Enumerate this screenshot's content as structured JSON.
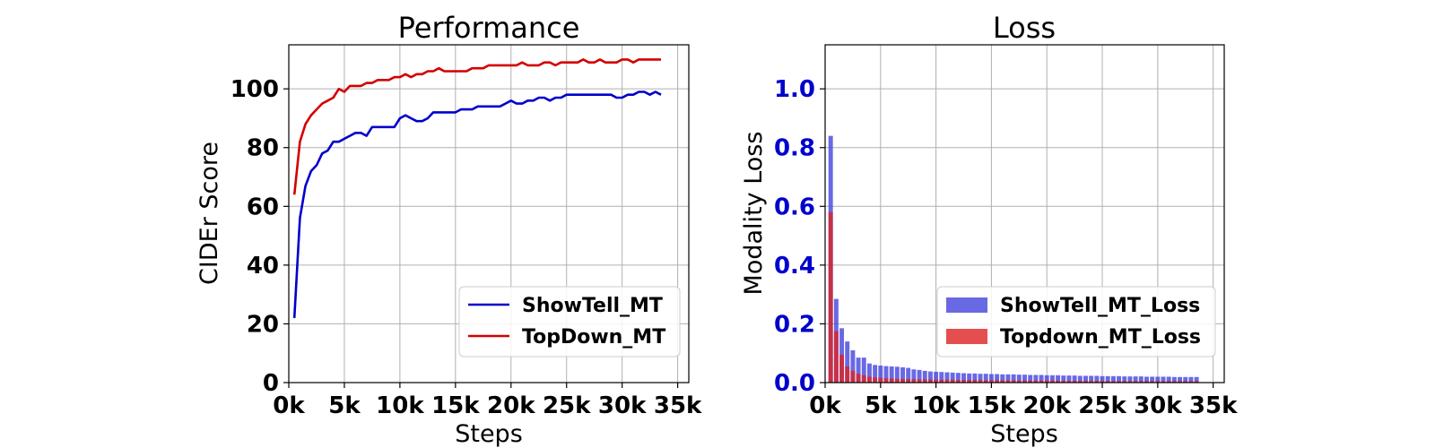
{
  "chart_data": [
    {
      "type": "line",
      "title": "Performance",
      "xlabel": "Steps",
      "ylabel": "CIDEr Score",
      "xlim": [
        0,
        36000
      ],
      "ylim": [
        0,
        115
      ],
      "xticks": [
        0,
        5000,
        10000,
        15000,
        20000,
        25000,
        30000,
        35000
      ],
      "xtick_labels": [
        "0k",
        "5k",
        "10k",
        "15k",
        "20k",
        "25k",
        "30k",
        "35k"
      ],
      "yticks": [
        0,
        20,
        40,
        60,
        80,
        100
      ],
      "ytick_labels": [
        "0",
        "20",
        "40",
        "60",
        "80",
        "100"
      ],
      "grid": true,
      "legend_position": "lower-right",
      "x": [
        500,
        1000,
        1500,
        2000,
        2500,
        3000,
        3500,
        4000,
        4500,
        5000,
        5500,
        6000,
        6500,
        7000,
        7500,
        8000,
        8500,
        9000,
        9500,
        10000,
        10500,
        11000,
        11500,
        12000,
        12500,
        13000,
        13500,
        14000,
        14500,
        15000,
        15500,
        16000,
        16500,
        17000,
        17500,
        18000,
        18500,
        19000,
        19500,
        20000,
        20500,
        21000,
        21500,
        22000,
        22500,
        23000,
        23500,
        24000,
        24500,
        25000,
        25500,
        26000,
        26500,
        27000,
        27500,
        28000,
        28500,
        29000,
        29500,
        30000,
        30500,
        31000,
        31500,
        32000,
        32500,
        33000,
        33500
      ],
      "series": [
        {
          "name": "ShowTell_MT",
          "color": "#0000cc",
          "values": [
            22,
            56,
            67,
            72,
            74,
            78,
            79,
            82,
            82,
            83,
            84,
            85,
            85,
            84,
            87,
            87,
            87,
            87,
            87,
            90,
            91,
            90,
            89,
            89,
            90,
            92,
            92,
            92,
            92,
            92,
            93,
            93,
            93,
            94,
            94,
            94,
            94,
            94,
            95,
            96,
            95,
            95,
            96,
            96,
            97,
            97,
            96,
            97,
            97,
            98,
            98,
            98,
            98,
            98,
            98,
            98,
            98,
            98,
            97,
            97,
            98,
            98,
            99,
            99,
            98,
            99,
            98
          ]
        },
        {
          "name": "TopDown_MT",
          "color": "#d40000",
          "values": [
            64,
            82,
            88,
            91,
            93,
            95,
            96,
            97,
            100,
            99,
            101,
            101,
            101,
            102,
            102,
            103,
            103,
            103,
            104,
            104,
            105,
            104,
            105,
            105,
            106,
            106,
            107,
            106,
            106,
            106,
            106,
            106,
            107,
            107,
            107,
            108,
            108,
            108,
            108,
            108,
            108,
            109,
            108,
            108,
            108,
            109,
            109,
            108,
            109,
            109,
            109,
            109,
            110,
            109,
            109,
            110,
            109,
            109,
            109,
            110,
            110,
            109,
            110,
            110,
            110,
            110,
            110
          ]
        }
      ]
    },
    {
      "type": "bar",
      "title": "Loss",
      "xlabel": "Steps",
      "ylabel": "Modality Loss",
      "xlim": [
        0,
        36000
      ],
      "ylim": [
        0,
        1.15
      ],
      "xticks": [
        0,
        5000,
        10000,
        15000,
        20000,
        25000,
        30000,
        35000
      ],
      "xtick_labels": [
        "0k",
        "5k",
        "10k",
        "15k",
        "20k",
        "25k",
        "30k",
        "35k"
      ],
      "yticks": [
        0,
        0.2,
        0.4,
        0.6,
        0.8,
        1.0
      ],
      "ytick_labels": [
        "0.0",
        "0.2",
        "0.4",
        "0.6",
        "0.8",
        "1.0"
      ],
      "ytick_color": "#0000cc",
      "grid": true,
      "legend_position": "lower-right",
      "x": [
        500,
        1000,
        1500,
        2000,
        2500,
        3000,
        3500,
        4000,
        4500,
        5000,
        5500,
        6000,
        6500,
        7000,
        7500,
        8000,
        8500,
        9000,
        9500,
        10000,
        10500,
        11000,
        11500,
        12000,
        12500,
        13000,
        13500,
        14000,
        14500,
        15000,
        15500,
        16000,
        16500,
        17000,
        17500,
        18000,
        18500,
        19000,
        19500,
        20000,
        20500,
        21000,
        21500,
        22000,
        22500,
        23000,
        23500,
        24000,
        24500,
        25000,
        25500,
        26000,
        26500,
        27000,
        27500,
        28000,
        28500,
        29000,
        29500,
        30000,
        30500,
        31000,
        31500,
        32000,
        32500,
        33000,
        33500
      ],
      "series": [
        {
          "name": "ShowTell_MT_Loss",
          "color": "#4444dd",
          "values": [
            0.84,
            0.285,
            0.185,
            0.14,
            0.11,
            0.085,
            0.085,
            0.065,
            0.06,
            0.058,
            0.056,
            0.055,
            0.054,
            0.052,
            0.05,
            0.045,
            0.043,
            0.04,
            0.038,
            0.037,
            0.036,
            0.035,
            0.034,
            0.033,
            0.032,
            0.031,
            0.031,
            0.03,
            0.03,
            0.029,
            0.029,
            0.028,
            0.028,
            0.028,
            0.027,
            0.027,
            0.026,
            0.026,
            0.026,
            0.025,
            0.025,
            0.025,
            0.024,
            0.024,
            0.024,
            0.023,
            0.023,
            0.023,
            0.023,
            0.022,
            0.022,
            0.022,
            0.022,
            0.021,
            0.021,
            0.021,
            0.021,
            0.02,
            0.02,
            0.02,
            0.02,
            0.02,
            0.019,
            0.019,
            0.019,
            0.019,
            0.019
          ]
        },
        {
          "name": "Topdown_MT_Loss",
          "color": "#dd2222",
          "values": [
            0.58,
            0.175,
            0.095,
            0.055,
            0.04,
            0.03,
            0.025,
            0.02,
            0.018,
            0.016,
            0.015,
            0.014,
            0.013,
            0.013,
            0.012,
            0.012,
            0.011,
            0.011,
            0.011,
            0.01,
            0.01,
            0.01,
            0.01,
            0.009,
            0.009,
            0.009,
            0.009,
            0.009,
            0.008,
            0.008,
            0.008,
            0.008,
            0.008,
            0.008,
            0.007,
            0.007,
            0.007,
            0.007,
            0.007,
            0.007,
            0.007,
            0.006,
            0.006,
            0.006,
            0.006,
            0.006,
            0.006,
            0.006,
            0.006,
            0.006,
            0.005,
            0.005,
            0.005,
            0.005,
            0.005,
            0.005,
            0.005,
            0.005,
            0.005,
            0.005,
            0.005,
            0.005,
            0.005,
            0.005,
            0.005,
            0.005,
            0.005
          ]
        }
      ]
    }
  ]
}
